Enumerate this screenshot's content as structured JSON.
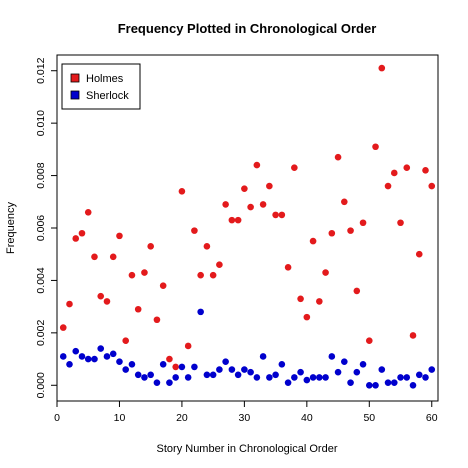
{
  "chart_data": {
    "type": "scatter",
    "title": "Frequency Plotted in Chronological Order",
    "xlabel": "Story Number in Chronological Order",
    "ylabel": "Frequency",
    "xlim": [
      0,
      61
    ],
    "ylim": [
      -0.0006,
      0.0126
    ],
    "x_ticks": [
      0,
      10,
      20,
      30,
      40,
      50,
      60
    ],
    "x_tick_labels": [
      "0",
      "10",
      "20",
      "30",
      "40",
      "50",
      "60"
    ],
    "y_ticks": [
      0,
      0.002,
      0.004,
      0.006,
      0.008,
      0.01,
      0.012
    ],
    "y_tick_labels": [
      "0.000",
      "0.002",
      "0.004",
      "0.006",
      "0.008",
      "0.010",
      "0.012"
    ],
    "grid": false,
    "legend_position": "top-left",
    "series": [
      {
        "name": "Holmes",
        "color": "#e31a1c",
        "x": [
          1,
          2,
          3,
          4,
          5,
          6,
          7,
          8,
          9,
          10,
          11,
          12,
          13,
          14,
          15,
          16,
          17,
          18,
          19,
          20,
          21,
          22,
          23,
          24,
          25,
          26,
          27,
          28,
          29,
          30,
          31,
          32,
          33,
          34,
          35,
          36,
          37,
          38,
          39,
          40,
          41,
          42,
          43,
          44,
          45,
          46,
          47,
          48,
          49,
          50,
          51,
          52,
          53,
          54,
          55,
          56,
          57,
          58,
          59,
          60
        ],
        "y": [
          0.0022,
          0.0031,
          0.0056,
          0.0058,
          0.0066,
          0.0049,
          0.0034,
          0.0032,
          0.0049,
          0.0057,
          0.0017,
          0.0042,
          0.0029,
          0.0043,
          0.0053,
          0.0025,
          0.0038,
          0.001,
          0.0007,
          0.0074,
          0.0015,
          0.0059,
          0.0042,
          0.0053,
          0.0042,
          0.0046,
          0.0069,
          0.0063,
          0.0063,
          0.0075,
          0.0068,
          0.0084,
          0.0069,
          0.0076,
          0.0065,
          0.0065,
          0.0045,
          0.0083,
          0.0033,
          0.0026,
          0.0055,
          0.0032,
          0.0043,
          0.0058,
          0.0087,
          0.007,
          0.0059,
          0.0036,
          0.0062,
          0.0017,
          0.0091,
          0.0121,
          0.0076,
          0.0081,
          0.0062,
          0.0083,
          0.0019,
          0.005,
          0.0082,
          0.0076
        ]
      },
      {
        "name": "Sherlock",
        "color": "#0000cd",
        "x": [
          1,
          2,
          3,
          4,
          5,
          6,
          7,
          8,
          9,
          10,
          11,
          12,
          13,
          14,
          15,
          16,
          17,
          18,
          19,
          20,
          21,
          22,
          23,
          24,
          25,
          26,
          27,
          28,
          29,
          30,
          31,
          32,
          33,
          34,
          35,
          36,
          37,
          38,
          39,
          40,
          41,
          42,
          43,
          44,
          45,
          46,
          47,
          48,
          49,
          50,
          51,
          52,
          53,
          54,
          55,
          56,
          57,
          58,
          59,
          60
        ],
        "y": [
          0.0011,
          0.0008,
          0.0013,
          0.0011,
          0.001,
          0.001,
          0.0014,
          0.0011,
          0.0012,
          0.0009,
          0.0006,
          0.0008,
          0.0004,
          0.0003,
          0.0004,
          0.0001,
          0.0008,
          0.0001,
          0.0003,
          0.0007,
          0.0003,
          0.0007,
          0.0028,
          0.0004,
          0.0004,
          0.0006,
          0.0009,
          0.0006,
          0.0004,
          0.0006,
          0.0005,
          0.0003,
          0.0011,
          0.0003,
          0.0004,
          0.0008,
          0.0001,
          0.0003,
          0.0005,
          0.0002,
          0.0003,
          0.0003,
          0.0003,
          0.0011,
          0.0005,
          0.0009,
          0.0001,
          0.0005,
          0.0008,
          0.0,
          0.0,
          0.0006,
          0.0001,
          0.0001,
          0.0003,
          0.0003,
          0.0,
          0.0004,
          0.0003,
          0.0006
        ]
      }
    ]
  }
}
